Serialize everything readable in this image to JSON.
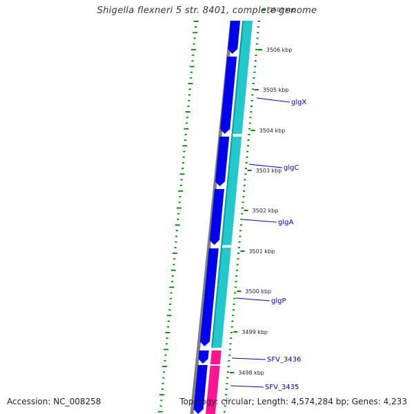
{
  "title": "Shigella flexneri 5 str. 8401, complete genome",
  "accession_label": "Accession: NC_008258",
  "stats_label": "Topology: circular; Length: 4,574,284 bp; Genes: 4,233",
  "colors": {
    "backbone": "#808080",
    "cds_forward": "#0000ee",
    "cds_reverse": "#22c9cc",
    "rna": "#ff1493",
    "gc_skew": "#008000",
    "tick": "#008000",
    "gene_label": "#0000cc",
    "line": "#0000cc"
  },
  "ticks": [
    "3507 kbp",
    "3506 kbp",
    "3505 kbp",
    "3504 kbp",
    "3503 kbp",
    "3502 kbp",
    "3501 kbp",
    "3500 kbp",
    "3499 kbp",
    "3498 kbp"
  ],
  "genes": [
    {
      "name": "glgX"
    },
    {
      "name": "glgC"
    },
    {
      "name": "glgA"
    },
    {
      "name": "glgP"
    },
    {
      "name": "SFV_3436"
    },
    {
      "name": "SFV_3435"
    }
  ]
}
